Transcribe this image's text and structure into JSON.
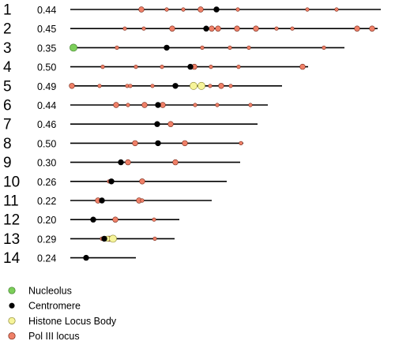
{
  "colors": {
    "line": "#000000",
    "nucleolus": "#7ccf5a",
    "centromere": "#000000",
    "histone_locus_body": "#f6f49a",
    "pol3_locus": "#ef8068",
    "marker_stroke": "#7a2a1a"
  },
  "legend": [
    {
      "key": "nucleolus",
      "label": "Nucleolus"
    },
    {
      "key": "centromere",
      "label": "Centromere"
    },
    {
      "key": "histone_locus_body",
      "label": "Histone Locus Body"
    },
    {
      "key": "pol3_locus",
      "label": "Pol III locus"
    }
  ],
  "chromosomes": [
    {
      "id": "1",
      "value": "0.44",
      "length": 482,
      "markers": [
        {
          "type": "pol3_locus",
          "pos": 179,
          "size": "m"
        },
        {
          "type": "pol3_locus",
          "pos": 211,
          "size": "s"
        },
        {
          "type": "pol3_locus",
          "pos": 232,
          "size": "s"
        },
        {
          "type": "pol3_locus",
          "pos": 254,
          "size": "m"
        },
        {
          "type": "centromere",
          "pos": 274,
          "size": "m"
        },
        {
          "type": "pol3_locus",
          "pos": 301,
          "size": "s"
        },
        {
          "type": "pol3_locus",
          "pos": 389,
          "size": "s"
        },
        {
          "type": "pol3_locus",
          "pos": 426,
          "size": "s"
        }
      ]
    },
    {
      "id": "2",
      "value": "0.45",
      "length": 478,
      "markers": [
        {
          "type": "pol3_locus",
          "pos": 158,
          "size": "s"
        },
        {
          "type": "pol3_locus",
          "pos": 182,
          "size": "s"
        },
        {
          "type": "pol3_locus",
          "pos": 218,
          "size": "m"
        },
        {
          "type": "centromere",
          "pos": 261,
          "size": "m"
        },
        {
          "type": "pol3_locus",
          "pos": 268,
          "size": "m"
        },
        {
          "type": "pol3_locus",
          "pos": 276,
          "size": "m"
        },
        {
          "type": "pol3_locus",
          "pos": 300,
          "size": "m"
        },
        {
          "type": "pol3_locus",
          "pos": 324,
          "size": "m"
        },
        {
          "type": "pol3_locus",
          "pos": 350,
          "size": "s"
        },
        {
          "type": "pol3_locus",
          "pos": 370,
          "size": "s"
        },
        {
          "type": "pol3_locus",
          "pos": 452,
          "size": "m"
        },
        {
          "type": "pol3_locus",
          "pos": 471,
          "size": "m"
        }
      ]
    },
    {
      "id": "3",
      "value": "0.35",
      "length": 436,
      "markers": [
        {
          "type": "nucleolus",
          "pos": 93,
          "size": "l"
        },
        {
          "type": "pol3_locus",
          "pos": 148,
          "size": "s"
        },
        {
          "type": "centromere",
          "pos": 211,
          "size": "m"
        },
        {
          "type": "pol3_locus",
          "pos": 256,
          "size": "s"
        },
        {
          "type": "pol3_locus",
          "pos": 291,
          "size": "s"
        },
        {
          "type": "pol3_locus",
          "pos": 315,
          "size": "s"
        },
        {
          "type": "pol3_locus",
          "pos": 410,
          "size": "s"
        }
      ]
    },
    {
      "id": "4",
      "value": "0.50",
      "length": 390,
      "markers": [
        {
          "type": "pol3_locus",
          "pos": 130,
          "size": "s"
        },
        {
          "type": "pol3_locus",
          "pos": 172,
          "size": "s"
        },
        {
          "type": "pol3_locus",
          "pos": 205,
          "size": "s"
        },
        {
          "type": "centromere",
          "pos": 241,
          "size": "m"
        },
        {
          "type": "pol3_locus",
          "pos": 246,
          "size": "m"
        },
        {
          "type": "pol3_locus",
          "pos": 267,
          "size": "s"
        },
        {
          "type": "pol3_locus",
          "pos": 302,
          "size": "s"
        },
        {
          "type": "pol3_locus",
          "pos": 383,
          "size": "m"
        }
      ]
    },
    {
      "id": "5",
      "value": "0.49",
      "length": 357,
      "markers": [
        {
          "type": "pol3_locus",
          "pos": 91,
          "size": "m"
        },
        {
          "type": "pol3_locus",
          "pos": 126,
          "size": "s"
        },
        {
          "type": "pol3_locus",
          "pos": 161,
          "size": "s"
        },
        {
          "type": "pol3_locus",
          "pos": 165,
          "size": "s"
        },
        {
          "type": "pol3_locus",
          "pos": 193,
          "size": "s"
        },
        {
          "type": "centromere",
          "pos": 222,
          "size": "m"
        },
        {
          "type": "histone_locus_body",
          "pos": 245,
          "size": "l"
        },
        {
          "type": "histone_locus_body",
          "pos": 255,
          "size": "l"
        },
        {
          "type": "pol3_locus",
          "pos": 266,
          "size": "s"
        },
        {
          "type": "pol3_locus",
          "pos": 280,
          "size": "m"
        },
        {
          "type": "pol3_locus",
          "pos": 292,
          "size": "s"
        }
      ]
    },
    {
      "id": "6",
      "value": "0.44",
      "length": 339,
      "markers": [
        {
          "type": "pol3_locus",
          "pos": 147,
          "size": "m"
        },
        {
          "type": "pol3_locus",
          "pos": 162,
          "size": "s"
        },
        {
          "type": "pol3_locus",
          "pos": 183,
          "size": "m"
        },
        {
          "type": "centromere",
          "pos": 200,
          "size": "m"
        },
        {
          "type": "pol3_locus",
          "pos": 206,
          "size": "m"
        },
        {
          "type": "pol3_locus",
          "pos": 247,
          "size": "s"
        },
        {
          "type": "pol3_locus",
          "pos": 275,
          "size": "s"
        },
        {
          "type": "pol3_locus",
          "pos": 317,
          "size": "s"
        }
      ]
    },
    {
      "id": "7",
      "value": "0.46",
      "length": 326,
      "markers": [
        {
          "type": "centromere",
          "pos": 199,
          "size": "m"
        },
        {
          "type": "pol3_locus",
          "pos": 216,
          "size": "m"
        }
      ]
    },
    {
      "id": "8",
      "value": "0.50",
      "length": 308,
      "markers": [
        {
          "type": "pol3_locus",
          "pos": 171,
          "size": "m"
        },
        {
          "type": "centromere",
          "pos": 200,
          "size": "m"
        },
        {
          "type": "pol3_locus",
          "pos": 234,
          "size": "m"
        },
        {
          "type": "pol3_locus",
          "pos": 305,
          "size": "s"
        }
      ]
    },
    {
      "id": "9",
      "value": "0.30",
      "length": 304,
      "markers": [
        {
          "type": "centromere",
          "pos": 153,
          "size": "m"
        },
        {
          "type": "pol3_locus",
          "pos": 162,
          "size": "m"
        },
        {
          "type": "pol3_locus",
          "pos": 222,
          "size": "m"
        }
      ]
    },
    {
      "id": "10",
      "value": "0.26",
      "length": 287,
      "markers": [
        {
          "type": "pol3_locus",
          "pos": 138,
          "size": "s"
        },
        {
          "type": "centromere",
          "pos": 141,
          "size": "m"
        },
        {
          "type": "pol3_locus",
          "pos": 180,
          "size": "m"
        }
      ]
    },
    {
      "id": "11",
      "value": "0.22",
      "length": 268,
      "markers": [
        {
          "type": "pol3_locus",
          "pos": 124,
          "size": "m"
        },
        {
          "type": "centromere",
          "pos": 129,
          "size": "m"
        },
        {
          "type": "pol3_locus",
          "pos": 176,
          "size": "m"
        },
        {
          "type": "pol3_locus",
          "pos": 180,
          "size": "s"
        }
      ]
    },
    {
      "id": "12",
      "value": "0.20",
      "length": 227,
      "markers": [
        {
          "type": "centromere",
          "pos": 118,
          "size": "m"
        },
        {
          "type": "pol3_locus",
          "pos": 146,
          "size": "m"
        },
        {
          "type": "pol3_locus",
          "pos": 195,
          "size": "s"
        }
      ]
    },
    {
      "id": "13",
      "value": "0.29",
      "length": 221,
      "markers": [
        {
          "type": "pol3_locus",
          "pos": 129,
          "size": "s"
        },
        {
          "type": "centromere",
          "pos": 132,
          "size": "m"
        },
        {
          "type": "histone_locus_body",
          "pos": 136,
          "size": "m"
        },
        {
          "type": "pol3_locus",
          "pos": 138,
          "size": "m"
        },
        {
          "type": "histone_locus_body",
          "pos": 143,
          "size": "l"
        },
        {
          "type": "pol3_locus",
          "pos": 196,
          "size": "s"
        }
      ]
    },
    {
      "id": "14",
      "value": "0.24",
      "length": 172,
      "markers": [
        {
          "type": "centromere",
          "pos": 109,
          "size": "m"
        }
      ]
    }
  ]
}
